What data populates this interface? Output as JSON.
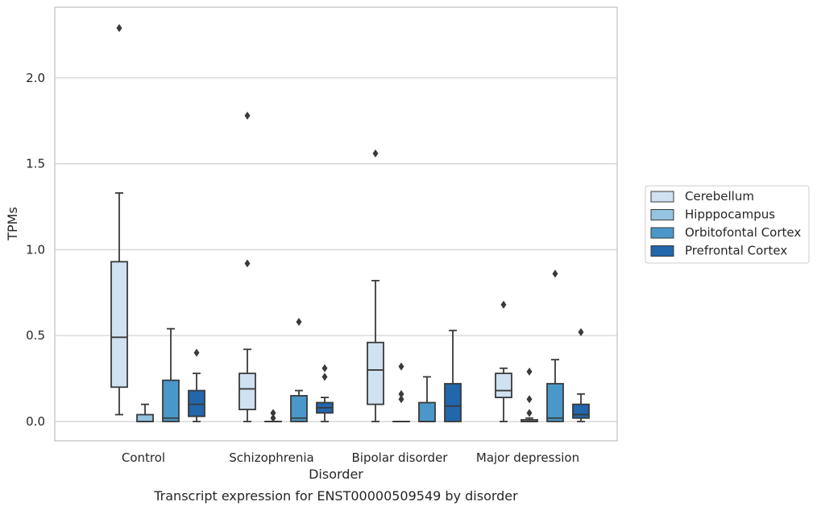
{
  "chart_data": {
    "type": "boxplot",
    "title": "Transcript expression for ENST00000509549 by disorder",
    "xlabel": "Disorder",
    "ylabel": "TPMs",
    "ylim": [
      -0.11,
      2.42
    ],
    "yticks": [
      0.0,
      0.5,
      1.0,
      1.5,
      2.0
    ],
    "ytick_labels": [
      "0.0",
      "0.5",
      "1.0",
      "1.5",
      "2.0"
    ],
    "grid": "horizontal",
    "legend_position": "right",
    "categories": [
      "Control",
      "Schizophrenia",
      "Bipolar disorder",
      "Major depression"
    ],
    "series": [
      {
        "name": "Cerebellum",
        "color": "#d0e1f2",
        "boxes": [
          {
            "whislo": 0.04,
            "q1": 0.2,
            "med": 0.49,
            "q3": 0.93,
            "whishi": 1.33,
            "fliers": [
              2.29
            ]
          },
          {
            "whislo": 0.0,
            "q1": 0.07,
            "med": 0.19,
            "q3": 0.28,
            "whishi": 0.42,
            "fliers": [
              0.92,
              1.78
            ]
          },
          {
            "whislo": 0.0,
            "q1": 0.1,
            "med": 0.3,
            "q3": 0.46,
            "whishi": 0.82,
            "fliers": [
              1.56
            ]
          },
          {
            "whislo": 0.0,
            "q1": 0.14,
            "med": 0.18,
            "q3": 0.28,
            "whishi": 0.31,
            "fliers": [
              0.68
            ]
          }
        ]
      },
      {
        "name": "Hipppocampus",
        "color": "#94c4df",
        "boxes": [
          {
            "whislo": 0.0,
            "q1": 0.0,
            "med": 0.0,
            "q3": 0.04,
            "whishi": 0.1,
            "fliers": []
          },
          {
            "whislo": 0.0,
            "q1": 0.0,
            "med": 0.0,
            "q3": 0.0,
            "whishi": 0.0,
            "fliers": [
              0.02,
              0.05
            ]
          },
          {
            "whislo": 0.0,
            "q1": 0.0,
            "med": 0.0,
            "q3": 0.0,
            "whishi": 0.0,
            "fliers": [
              0.13,
              0.16,
              0.32
            ]
          },
          {
            "whislo": 0.0,
            "q1": 0.0,
            "med": 0.0,
            "q3": 0.01,
            "whishi": 0.02,
            "fliers": [
              0.05,
              0.13,
              0.29
            ]
          }
        ]
      },
      {
        "name": "Orbitofontal Cortex",
        "color": "#4a98c9",
        "boxes": [
          {
            "whislo": 0.0,
            "q1": 0.0,
            "med": 0.02,
            "q3": 0.24,
            "whishi": 0.54,
            "fliers": []
          },
          {
            "whislo": 0.0,
            "q1": 0.0,
            "med": 0.02,
            "q3": 0.15,
            "whishi": 0.18,
            "fliers": [
              0.58
            ]
          },
          {
            "whislo": 0.0,
            "q1": 0.0,
            "med": 0.0,
            "q3": 0.11,
            "whishi": 0.26,
            "fliers": []
          },
          {
            "whislo": 0.0,
            "q1": 0.0,
            "med": 0.02,
            "q3": 0.22,
            "whishi": 0.36,
            "fliers": [
              0.86
            ]
          }
        ]
      },
      {
        "name": "Prefrontal Cortex",
        "color": "#2266ac",
        "boxes": [
          {
            "whislo": 0.0,
            "q1": 0.03,
            "med": 0.1,
            "q3": 0.18,
            "whishi": 0.28,
            "fliers": [
              0.4
            ]
          },
          {
            "whislo": 0.0,
            "q1": 0.05,
            "med": 0.08,
            "q3": 0.11,
            "whishi": 0.14,
            "fliers": [
              0.26,
              0.31
            ]
          },
          {
            "whislo": 0.0,
            "q1": 0.0,
            "med": 0.09,
            "q3": 0.22,
            "whishi": 0.53,
            "fliers": []
          },
          {
            "whislo": 0.0,
            "q1": 0.02,
            "med": 0.04,
            "q3": 0.1,
            "whishi": 0.16,
            "fliers": [
              0.52
            ]
          }
        ]
      }
    ]
  },
  "colors": {
    "line": "#3a3a3a",
    "grid": "#cfcfcf",
    "frame": "#cccccc"
  }
}
